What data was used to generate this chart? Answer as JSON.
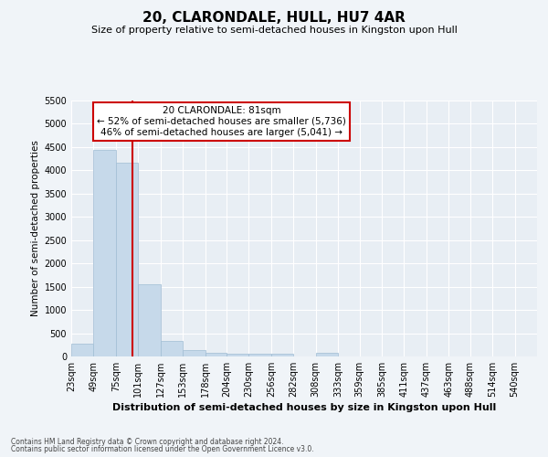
{
  "title": "20, CLARONDALE, HULL, HU7 4AR",
  "subtitle": "Size of property relative to semi-detached houses in Kingston upon Hull",
  "xlabel": "Distribution of semi-detached houses by size in Kingston upon Hull",
  "ylabel": "Number of semi-detached properties",
  "footnote1": "Contains HM Land Registry data © Crown copyright and database right 2024.",
  "footnote2": "Contains public sector information licensed under the Open Government Licence v3.0.",
  "annotation_title": "20 CLARONDALE: 81sqm",
  "annotation_line1": "← 52% of semi-detached houses are smaller (5,736)",
  "annotation_line2": "46% of semi-detached houses are larger (5,041) →",
  "property_size": 81,
  "bar_color": "#c6d9ea",
  "bar_edge_color": "#a0bdd4",
  "vline_color": "#cc0000",
  "annotation_box_color": "#ffffff",
  "annotation_box_edge": "#cc0000",
  "background_color": "#e8eef4",
  "grid_color": "#ffffff",
  "fig_background": "#f0f4f8",
  "categories": [
    "23sqm",
    "49sqm",
    "75sqm",
    "101sqm",
    "127sqm",
    "153sqm",
    "178sqm",
    "204sqm",
    "230sqm",
    "256sqm",
    "282sqm",
    "308sqm",
    "333sqm",
    "359sqm",
    "385sqm",
    "411sqm",
    "437sqm",
    "463sqm",
    "488sqm",
    "514sqm",
    "540sqm"
  ],
  "values": [
    280,
    4430,
    4160,
    1560,
    330,
    130,
    80,
    65,
    60,
    55,
    0,
    70,
    0,
    0,
    0,
    0,
    0,
    0,
    0,
    0,
    0
  ],
  "bin_edges": [
    10,
    36,
    62,
    88,
    114,
    140,
    166,
    191,
    217,
    243,
    269,
    295,
    321,
    346,
    372,
    398,
    424,
    450,
    475,
    501,
    527,
    553
  ],
  "ylim": [
    0,
    5500
  ],
  "yticks": [
    0,
    500,
    1000,
    1500,
    2000,
    2500,
    3000,
    3500,
    4000,
    4500,
    5000,
    5500
  ],
  "title_fontsize": 11,
  "subtitle_fontsize": 8,
  "ylabel_fontsize": 7.5,
  "xlabel_fontsize": 8,
  "tick_fontsize": 7,
  "annot_fontsize": 7.5,
  "footnote_fontsize": 5.5
}
